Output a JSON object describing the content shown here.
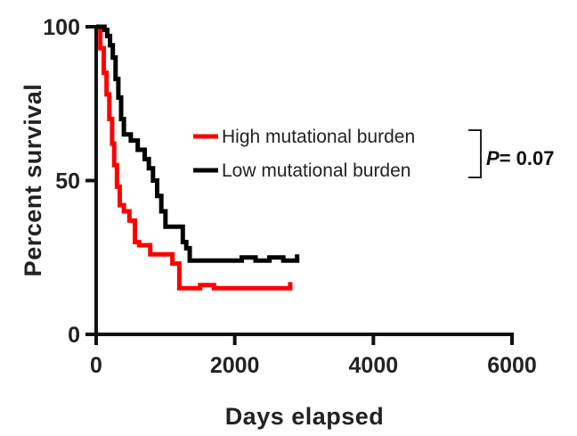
{
  "chart_data": {
    "type": "line",
    "xlabel": "Days elapsed",
    "ylabel": "Percent survival",
    "xlim": [
      0,
      6000
    ],
    "ylim": [
      0,
      100
    ],
    "x_ticks": [
      "0",
      "2000",
      "4000",
      "6000"
    ],
    "y_ticks": [
      "0",
      "50",
      "100"
    ],
    "grid": false,
    "legend_position": "right",
    "annotation": {
      "label": "P",
      "value": "= 0.07"
    },
    "series": [
      {
        "name": "High mutational burden",
        "color": "#ff0000",
        "step": true,
        "x": [
          0,
          60,
          110,
          150,
          190,
          230,
          260,
          300,
          340,
          400,
          480,
          560,
          620,
          700,
          780,
          880,
          980,
          1100,
          1200,
          1300,
          1500,
          1700,
          1900,
          2100,
          2300,
          2500,
          2700,
          2800
        ],
        "y": [
          100,
          93,
          85,
          78,
          70,
          62,
          55,
          48,
          42,
          40,
          37,
          30,
          29,
          29,
          26,
          26,
          26,
          23,
          15,
          15,
          16,
          15,
          15,
          15,
          15,
          15,
          15,
          17
        ]
      },
      {
        "name": "Low mutational burden",
        "color": "#000000",
        "step": true,
        "x": [
          0,
          120,
          160,
          200,
          240,
          280,
          320,
          360,
          400,
          500,
          600,
          700,
          760,
          820,
          880,
          940,
          1000,
          1150,
          1250,
          1300,
          1350,
          1500,
          1700,
          1900,
          2100,
          2300,
          2500,
          2700,
          2900
        ],
        "y": [
          100,
          99,
          97,
          94,
          90,
          83,
          77,
          70,
          65,
          63,
          60,
          57,
          54,
          50,
          45,
          40,
          35,
          35,
          30,
          28,
          24,
          24,
          24,
          24,
          25,
          24,
          25,
          24,
          26
        ]
      }
    ]
  }
}
